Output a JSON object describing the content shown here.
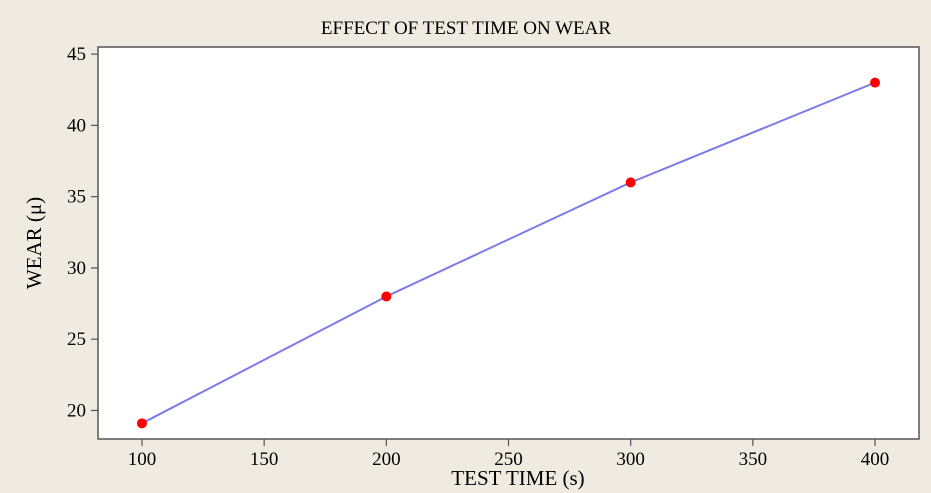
{
  "chart_data": {
    "type": "line",
    "title": "EFFECT OF TEST TIME ON WEAR",
    "xlabel": "TEST TIME (s)",
    "ylabel": "WEAR (μ)",
    "xlim": [
      82,
      418
    ],
    "ylim": [
      18,
      45.5
    ],
    "xticks": [
      100,
      150,
      200,
      250,
      300,
      350,
      400
    ],
    "yticks": [
      20,
      25,
      30,
      35,
      40,
      45
    ],
    "grid": false,
    "series": [
      {
        "x": [
          100,
          200,
          300,
          400
        ],
        "y": [
          19.1,
          28.0,
          36.0,
          43.0
        ],
        "line_color": "#7b7bea",
        "marker_color": "#ff0000"
      }
    ]
  }
}
